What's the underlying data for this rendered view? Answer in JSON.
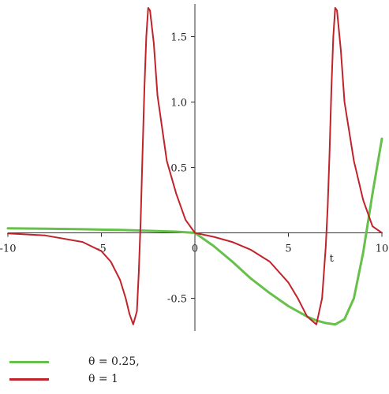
{
  "chart_data": {
    "type": "line",
    "title": "",
    "xlabel": "t",
    "ylabel": "",
    "xlim": [
      -10,
      10
    ],
    "ylim": [
      -0.75,
      1.75
    ],
    "x_ticks": [
      -10,
      -5,
      0,
      5,
      10
    ],
    "x_tick_labels": [
      "-10",
      "-5",
      "0",
      "5",
      "10"
    ],
    "y_ticks": [
      -0.5,
      0.5,
      1.0,
      1.5
    ],
    "y_tick_labels": [
      "-0.5",
      "0.5",
      "1.0",
      "1.5"
    ],
    "grid": false,
    "legend_position": "bottom-left",
    "series": [
      {
        "name": "θ = 0.25,",
        "color": "#66c04a",
        "x": [
          -10,
          -8,
          -6,
          -4,
          -2,
          -1,
          0,
          1,
          2,
          3,
          4,
          5,
          6,
          6.5,
          7,
          7.5,
          8,
          8.5,
          9,
          9.5,
          10
        ],
        "y": [
          0.035,
          0.032,
          0.028,
          0.022,
          0.014,
          0.009,
          0.0,
          -0.1,
          -0.22,
          -0.35,
          -0.46,
          -0.56,
          -0.64,
          -0.67,
          -0.69,
          -0.7,
          -0.66,
          -0.5,
          -0.15,
          0.3,
          0.72
        ]
      },
      {
        "name": "θ = 1",
        "color": "#c0232a",
        "x": [
          -10,
          -8,
          -6,
          -5,
          -4.5,
          -4,
          -3.7,
          -3.5,
          -3.3,
          -3.1,
          -3.0,
          -2.9,
          -2.8,
          -2.7,
          -2.6,
          -2.5,
          -2.4,
          -2.2,
          -2.0,
          -1.5,
          -1.0,
          -0.5,
          0,
          1,
          2,
          3,
          4,
          5,
          5.5,
          6,
          6.5,
          6.8,
          7.0,
          7.1,
          7.2,
          7.3,
          7.4,
          7.5,
          7.6,
          7.8,
          8.0,
          8.5,
          9,
          9.5,
          10
        ],
        "y": [
          -0.005,
          -0.02,
          -0.07,
          -0.14,
          -0.22,
          -0.36,
          -0.5,
          -0.62,
          -0.7,
          -0.6,
          -0.3,
          0.1,
          0.6,
          1.1,
          1.5,
          1.72,
          1.7,
          1.45,
          1.05,
          0.55,
          0.3,
          0.1,
          0.0,
          -0.03,
          -0.07,
          -0.13,
          -0.22,
          -0.38,
          -0.5,
          -0.64,
          -0.7,
          -0.5,
          -0.1,
          0.2,
          0.6,
          1.1,
          1.5,
          1.72,
          1.7,
          1.4,
          1.0,
          0.55,
          0.25,
          0.05,
          0.0
        ]
      }
    ]
  }
}
